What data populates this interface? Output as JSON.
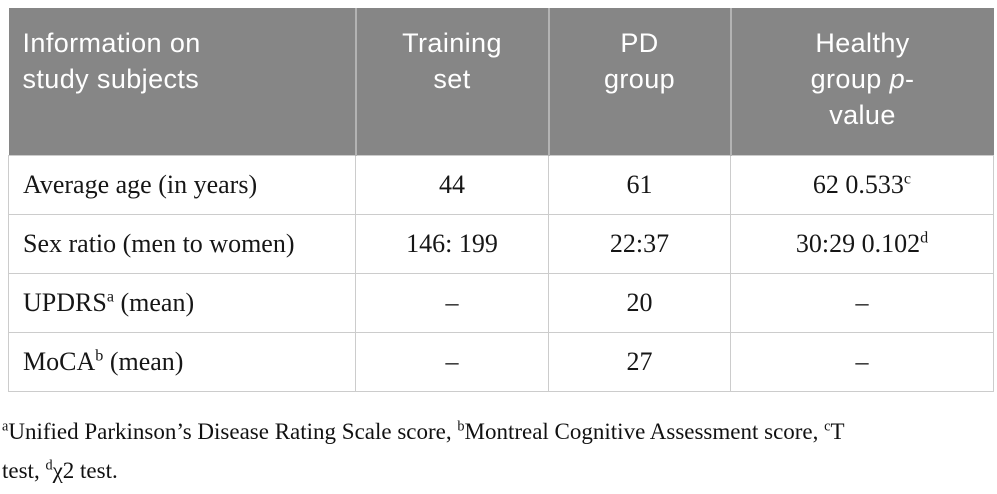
{
  "page": {
    "type": "academic-article-table"
  },
  "colors": {
    "header_background": "#868686",
    "header_text": "#ffffff",
    "header_divider": "#b3b3b3",
    "body_border": "#cccccc",
    "body_text": "#161616",
    "page_background": "#ffffff"
  },
  "table": {
    "columns": [
      {
        "key": "info",
        "segments": [
          {
            "t": "Information on"
          },
          {
            "br": true
          },
          {
            "t": "study subjects"
          }
        ]
      },
      {
        "key": "training",
        "segments": [
          {
            "t": "Training"
          },
          {
            "br": true
          },
          {
            "t": "set"
          }
        ]
      },
      {
        "key": "pd",
        "segments": [
          {
            "t": "PD"
          },
          {
            "br": true
          },
          {
            "t": "group"
          }
        ]
      },
      {
        "key": "healthy",
        "segments": [
          {
            "t": "Healthy"
          },
          {
            "br": true
          },
          {
            "t": "group "
          },
          {
            "t": "p",
            "i": true
          },
          {
            "t": "-"
          },
          {
            "br": true
          },
          {
            "t": "value"
          }
        ]
      }
    ],
    "rows": [
      {
        "label": [
          {
            "t": "Average age (in years)"
          }
        ],
        "cells": [
          [
            {
              "t": "44"
            }
          ],
          [
            {
              "t": "61"
            }
          ],
          [
            {
              "t": "62 0.533"
            },
            {
              "t": "c",
              "sup": true
            }
          ]
        ]
      },
      {
        "label": [
          {
            "t": "Sex ratio (men to women)"
          }
        ],
        "cells": [
          [
            {
              "t": "146: 199"
            }
          ],
          [
            {
              "t": "22:37"
            }
          ],
          [
            {
              "t": "30:29 0.102"
            },
            {
              "t": "d",
              "sup": true
            }
          ]
        ]
      },
      {
        "label": [
          {
            "t": "UPDRS"
          },
          {
            "t": "a",
            "sup": true
          },
          {
            "t": " (mean)"
          }
        ],
        "cells": [
          [
            {
              "t": "–"
            }
          ],
          [
            {
              "t": "20"
            }
          ],
          [
            {
              "t": "–"
            }
          ]
        ]
      },
      {
        "label": [
          {
            "t": "MoCA"
          },
          {
            "t": "b",
            "sup": true
          },
          {
            "t": " (mean)"
          }
        ],
        "cells": [
          [
            {
              "t": "–"
            }
          ],
          [
            {
              "t": "27"
            }
          ],
          [
            {
              "t": "–"
            }
          ]
        ]
      }
    ]
  },
  "footnote": {
    "lines": [
      [
        {
          "t": "a",
          "sup": true
        },
        {
          "t": "Unified Parkinson’s Disease Rating Scale score, "
        },
        {
          "t": "b",
          "sup": true
        },
        {
          "t": "Montreal Cognitive Assessment score, "
        },
        {
          "t": "c",
          "sup": true
        },
        {
          "t": "T"
        }
      ],
      [
        {
          "t": "test, "
        },
        {
          "t": "d",
          "sup": true
        },
        {
          "t": "χ2 test."
        }
      ]
    ]
  }
}
